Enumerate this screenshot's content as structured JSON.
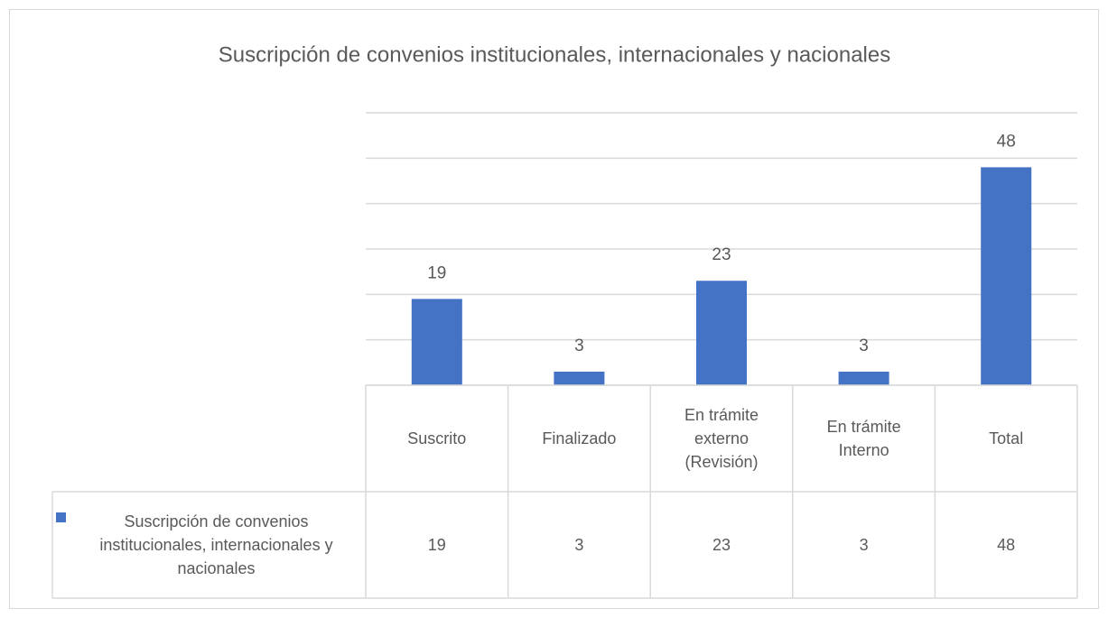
{
  "chart_data": {
    "type": "bar",
    "title": "Suscripción de convenios institucionales, internacionales y nacionales",
    "categories": [
      "Suscrito",
      "Finalizado",
      "En trámite externo (Revisión)",
      "En trámite Interno",
      "Total"
    ],
    "series": [
      {
        "name": "Suscripción de convenios institucionales, internacionales y nacionales",
        "color": "#4472c4",
        "values": [
          19,
          3,
          23,
          3,
          48
        ]
      }
    ],
    "ylim": [
      0,
      60
    ],
    "yticks": [
      0,
      10,
      20,
      30,
      40,
      50,
      60
    ],
    "grid": true,
    "data_table": true
  }
}
